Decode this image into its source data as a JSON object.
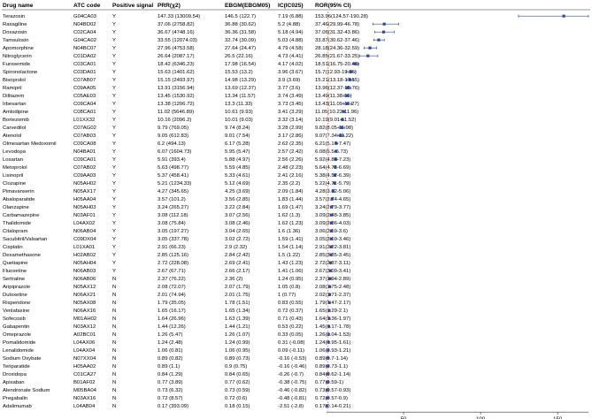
{
  "headers": {
    "drug": "Drug name",
    "atc": "ATC code",
    "signal": "Positive signal",
    "prr": "PRR(χ2)",
    "ebgm": "EBGM(EBGM05)",
    "ic": "IC(IC025)",
    "ror": "ROR(95% CI)"
  },
  "chart_data": {
    "type": "forest",
    "xlabel": "",
    "xlim": [
      0,
      170
    ],
    "xticks": [
      50,
      100,
      150
    ],
    "reference_line": 1,
    "marker_color": "#2e4a9c",
    "reference_color": "#e06060",
    "rows": [
      {
        "drug": "Terazosin",
        "atc": "G04CA03",
        "signal": "Y",
        "prr": "147.33 (13009.54)",
        "ebgm": "146.5 (122.7)",
        "ic": "7.19 (6.88)",
        "ror_text": "153.96(124.57-190.28)",
        "ror": 153.96,
        "lo": 124.57,
        "hi": 190.28
      },
      {
        "drug": "Rasagiline",
        "atc": "N04BD02",
        "signal": "Y",
        "prr": "37.06 (2758.82)",
        "ebgm": "36.88 (30.62)",
        "ic": "5.2 (4.88)",
        "ror_text": "37.46(29.99-46.78)",
        "ror": 37.46,
        "lo": 29.99,
        "hi": 46.78
      },
      {
        "drug": "Doxazosin",
        "atc": "C02CA04",
        "signal": "Y",
        "prr": "36.67 (4748.16)",
        "ebgm": "36.36 (31.58)",
        "ic": "5.18 (4.94)",
        "ror_text": "37.06(31.32-43.86)",
        "ror": 37.06,
        "lo": 31.32,
        "hi": 43.86
      },
      {
        "drug": "Tamsulosin",
        "atc": "G04CA02",
        "signal": "Y",
        "prr": "33.55 (12074.03)",
        "ebgm": "32.74 (30.09)",
        "ic": "5.03 (4.88)",
        "ror_text": "33.87(30.62-37.46)",
        "ror": 33.87,
        "lo": 30.62,
        "hi": 37.46
      },
      {
        "drug": "Apomorphine",
        "atc": "N04BC07",
        "signal": "Y",
        "prr": "27.96 (4753.58)",
        "ebgm": "27.64 (24.47)",
        "ic": "4.79 (4.58)",
        "ror_text": "28.18(24.36-32.59)",
        "ror": 28.18,
        "lo": 24.36,
        "hi": 32.59
      },
      {
        "drug": "Nitroglycerin",
        "atc": "C01DA02",
        "signal": "Y",
        "prr": "26.64 (2087.17)",
        "ebgm": "26.5 (22.16)",
        "ic": "4.73 (4.41)",
        "ror_text": "26.85(21.67-33.25)",
        "ror": 26.85,
        "lo": 21.67,
        "hi": 33.25
      },
      {
        "drug": "Furosemide",
        "atc": "C03CA01",
        "signal": "Y",
        "prr": "18.42 (6346.23)",
        "ebgm": "17.98 (16.54)",
        "ic": "4.17 (4.02)",
        "ror_text": "18.51(16.75-20.46)",
        "ror": 18.51,
        "lo": 16.75,
        "hi": 20.46
      },
      {
        "drug": "Spironolactone",
        "atc": "C03DA01",
        "signal": "Y",
        "prr": "15.63 (1401.62)",
        "ebgm": "15.53 (13.2)",
        "ic": "3.96 (3.67)",
        "ror_text": "15.7(12.93-19.06)",
        "ror": 15.7,
        "lo": 12.93,
        "hi": 19.06
      },
      {
        "drug": "Bisoprolol",
        "atc": "C07AB07",
        "signal": "Y",
        "prr": "15.15 (2493.97)",
        "ebgm": "14.98 (13.29)",
        "ic": "3.9 (3.69)",
        "ror_text": "15.21(13.18-17.55)",
        "ror": 15.21,
        "lo": 13.18,
        "hi": 17.55
      },
      {
        "drug": "Ramipril",
        "atc": "C09AA05",
        "signal": "Y",
        "prr": "13.91 (3156.94)",
        "ebgm": "13.69 (12.37)",
        "ic": "3.77 (3.6)",
        "ror_text": "13.96(12.37-15.76)",
        "ror": 13.96,
        "lo": 12.37,
        "hi": 15.76
      },
      {
        "drug": "Diltiazem",
        "atc": "C05AE03",
        "signal": "Y",
        "prr": "13.45 (1530.92)",
        "ebgm": "13.34 (11.57)",
        "ic": "3.74 (3.49)",
        "ror_text": "13.49(11.38-16)",
        "ror": 13.49,
        "lo": 11.38,
        "hi": 16.0
      },
      {
        "drug": "Irbesartan",
        "atc": "C09CA04",
        "signal": "Y",
        "prr": "13.38 (1206.72)",
        "ebgm": "13.3 (11.33)",
        "ic": "3.73 (3.45)",
        "ror_text": "13.43(11.09-16.27)",
        "ror": 13.43,
        "lo": 11.09,
        "hi": 16.27
      },
      {
        "drug": "Amlodipine",
        "atc": "C08CA01",
        "signal": "Y",
        "prr": "11.02 (5646.89)",
        "ebgm": "10.61 (9.93)",
        "ic": "3.41 (3.29)",
        "ror_text": "11.05(10.22-11.96)",
        "ror": 11.05,
        "lo": 10.22,
        "hi": 11.96
      },
      {
        "drug": "Bortezomib",
        "atc": "L01XX32",
        "signal": "Y",
        "prr": "10.16 (2096.2)",
        "ebgm": "10.01 (9.03)",
        "ic": "3.32 (3.14)",
        "ror_text": "10.19(9.01-11.52)",
        "ror": 10.19,
        "lo": 9.01,
        "hi": 11.52
      },
      {
        "drug": "Carvedilol",
        "atc": "C07AG02",
        "signal": "Y",
        "prr": "9.79 (769.05)",
        "ebgm": "9.74 (8.24)",
        "ic": "3.28 (2.99)",
        "ror_text": "9.82(8.05-11.98)",
        "ror": 9.82,
        "lo": 8.05,
        "hi": 11.98
      },
      {
        "drug": "Atenolol",
        "atc": "C07AB03",
        "signal": "Y",
        "prr": "9.05 (612.83)",
        "ebgm": "9.01 (7.54)",
        "ic": "3.17 (2.86)",
        "ror_text": "9.07(7.34-11.22)",
        "ror": 9.07,
        "lo": 7.34,
        "hi": 11.22
      },
      {
        "drug": "Olmesartan Medoxomil",
        "atc": "C09CA08",
        "signal": "Y",
        "prr": "6.2 (494.13)",
        "ebgm": "6.17 (5.28)",
        "ic": "2.62 (2.35)",
        "ror_text": "6.21(5.17-7.47)",
        "ror": 6.21,
        "lo": 5.17,
        "hi": 7.47
      },
      {
        "drug": "Levodopa",
        "atc": "N04BA01",
        "signal": "Y",
        "prr": "6.07 (1604.73)",
        "ebgm": "5.95 (5.47)",
        "ic": "2.57 (2.42)",
        "ror_text": "6.08(5.5-6.73)",
        "ror": 6.08,
        "lo": 5.5,
        "hi": 6.73
      },
      {
        "drug": "Losartan",
        "atc": "C09CA01",
        "signal": "Y",
        "prr": "5.91 (393.4)",
        "ebgm": "5.88 (4.97)",
        "ic": "2.56 (2.26)",
        "ror_text": "5.92(4.85-7.23)",
        "ror": 5.92,
        "lo": 4.85,
        "hi": 7.23
      },
      {
        "drug": "Metoprolol",
        "atc": "C07AB02",
        "signal": "Y",
        "prr": "5.63 (498.77)",
        "ebgm": "5.59 (4.85)",
        "ic": "2.48 (2.23)",
        "ror_text": "5.64(4.75-6.69)",
        "ror": 5.64,
        "lo": 4.75,
        "hi": 6.69
      },
      {
        "drug": "Lisinopril",
        "atc": "C09AA03",
        "signal": "Y",
        "prr": "5.37 (458.41)",
        "ebgm": "5.33 (4.61)",
        "ic": "2.41 (2.16)",
        "ror_text": "5.38(4.52-6.39)",
        "ror": 5.38,
        "lo": 4.52,
        "hi": 6.39
      },
      {
        "drug": "Clozapine",
        "atc": "N05AH02",
        "signal": "Y",
        "prr": "5.21 (1234.33)",
        "ebgm": "5.12 (4.69)",
        "ic": "2.35 (2.2)",
        "ror_text": "5.22(4.71-5.79)",
        "ror": 5.22,
        "lo": 4.71,
        "hi": 5.79
      },
      {
        "drug": "Pimavanserin",
        "atc": "N05AX17",
        "signal": "Y",
        "prr": "4.27 (345.65)",
        "ebgm": "4.25 (3.69)",
        "ic": "2.09 (1.84)",
        "ror_text": "4.28(3.62-5.06)",
        "ror": 4.28,
        "lo": 3.62,
        "hi": 5.06
      },
      {
        "drug": "Abaloparatide",
        "atc": "H05AA04",
        "signal": "Y",
        "prr": "3.57 (101.2)",
        "ebgm": "3.56 (2.85)",
        "ic": "1.83 (1.44)",
        "ror_text": "3.57(2.74-4.65)",
        "ror": 3.57,
        "lo": 2.74,
        "hi": 4.65
      },
      {
        "drug": "Olanzapine",
        "atc": "N05AH03",
        "signal": "Y",
        "prr": "3.24 (265.27)",
        "ebgm": "3.22 (2.84)",
        "ic": "1.69 (1.47)",
        "ror_text": "3.24(2.79-3.77)",
        "ror": 3.24,
        "lo": 2.79,
        "hi": 3.77
      },
      {
        "drug": "Carbamazepine",
        "atc": "N03AF01",
        "signal": "Y",
        "prr": "3.08 (112.18)",
        "ebgm": "3.07 (2.56)",
        "ic": "1.62 (1.3)",
        "ror_text": "3.09(2.48-3.85)",
        "ror": 3.09,
        "lo": 2.48,
        "hi": 3.85
      },
      {
        "drug": "Thalidomide",
        "atc": "L04AX02",
        "signal": "Y",
        "prr": "3.08 (75.84)",
        "ebgm": "3.08 (2.46)",
        "ic": "1.62 (1.23)",
        "ror_text": "3.09(2.36-4.03)",
        "ror": 3.09,
        "lo": 2.36,
        "hi": 4.03
      },
      {
        "drug": "Citalopram",
        "atc": "N06AB04",
        "signal": "Y",
        "prr": "3.05 (197.27)",
        "ebgm": "3.04 (2.65)",
        "ic": "1.6 (1.36)",
        "ror_text": "3.06(2.59-3.6)",
        "ror": 3.06,
        "lo": 2.59,
        "hi": 3.6
      },
      {
        "drug": "Sacubitril/Valsartan",
        "atc": "C09DX04",
        "signal": "Y",
        "prr": "3.05 (337.78)",
        "ebgm": "3.02 (2.72)",
        "ic": "1.59 (1.41)",
        "ror_text": "3.05(2.69-3.46)",
        "ror": 3.05,
        "lo": 2.69,
        "hi": 3.46
      },
      {
        "drug": "Cisplatin",
        "atc": "L01XA01",
        "signal": "Y",
        "prr": "2.91 (66.23)",
        "ebgm": "2.9 (2.32)",
        "ic": "1.54 (1.14)",
        "ror_text": "2.91(2.22-3.81)",
        "ror": 2.91,
        "lo": 2.22,
        "hi": 3.81
      },
      {
        "drug": "Dexamethasone",
        "atc": "H02AB02",
        "signal": "Y",
        "prr": "2.85 (125.16)",
        "ebgm": "2.84 (2.42)",
        "ic": "1.5 (1.22)",
        "ror_text": "2.85(2.35-3.45)",
        "ror": 2.85,
        "lo": 2.35,
        "hi": 3.45
      },
      {
        "drug": "Quetiapine",
        "atc": "N05AH04",
        "signal": "Y",
        "prr": "2.72 (228.08)",
        "ebgm": "2.69 (2.41)",
        "ic": "1.43 (1.23)",
        "ror_text": "2.72(2.37-3.11)",
        "ror": 2.72,
        "lo": 2.37,
        "hi": 3.11
      },
      {
        "drug": "Fluoxetine",
        "atc": "N06AB03",
        "signal": "Y",
        "prr": "2.67 (67.71)",
        "ebgm": "2.66 (2.17)",
        "ic": "1.41 (1.06)",
        "ror_text": "2.67(2.09-3.41)",
        "ror": 2.67,
        "lo": 2.09,
        "hi": 3.41
      },
      {
        "drug": "Sertraline",
        "atc": "N06AB06",
        "signal": "N",
        "prr": "2.37 (76.22)",
        "ebgm": "2.36 (2)",
        "ic": "1.24 (0.95)",
        "ror_text": "2.37(1.94-2.89)",
        "ror": 2.37,
        "lo": 1.94,
        "hi": 2.89
      },
      {
        "drug": "Aripiprazole",
        "atc": "N05AX12",
        "signal": "N",
        "prr": "2.08 (72.07)",
        "ebgm": "2.07 (1.79)",
        "ic": "1.05 (0.8)",
        "ror_text": "2.08(1.75-2.48)",
        "ror": 2.08,
        "lo": 1.75,
        "hi": 2.48
      },
      {
        "drug": "Duloxetine",
        "atc": "N06AX21",
        "signal": "N",
        "prr": "2.01 (74.94)",
        "ebgm": "2.01 (1.75)",
        "ic": "1 (0.77)",
        "ror_text": "2.02(1.71-2.37)",
        "ror": 2.02,
        "lo": 1.71,
        "hi": 2.37
      },
      {
        "drug": "Risperidone",
        "atc": "N05AX08",
        "signal": "N",
        "prr": "1.79 (35.05)",
        "ebgm": "1.78 (1.51)",
        "ic": "0.83 (0.55)",
        "ror_text": "1.79(1.47-2.17)",
        "ror": 1.79,
        "lo": 1.47,
        "hi": 2.17
      },
      {
        "drug": "Venlafaxine",
        "atc": "N06AX16",
        "signal": "N",
        "prr": "1.65 (16.17)",
        "ebgm": "1.65 (1.34)",
        "ic": "0.72 (0.37)",
        "ror_text": "1.65(1.29-2.1)",
        "ror": 1.65,
        "lo": 1.29,
        "hi": 2.1
      },
      {
        "drug": "Sofecosib",
        "atc": "M01AH02",
        "signal": "N",
        "prr": "1.64 (26.96)",
        "ebgm": "1.63 (1.39)",
        "ic": "0.71 (0.43)",
        "ror_text": "1.64(1.36-1.97)",
        "ror": 1.64,
        "lo": 1.36,
        "hi": 1.97
      },
      {
        "drug": "Gabapentin",
        "atc": "N03AX12",
        "signal": "N",
        "prr": "1.44 (12.26)",
        "ebgm": "1.44 (1.21)",
        "ic": "0.53 (0.22)",
        "ror_text": "1.45(1.17-1.78)",
        "ror": 1.45,
        "lo": 1.17,
        "hi": 1.78
      },
      {
        "drug": "Omeprazole",
        "atc": "A02BC01",
        "signal": "N",
        "prr": "1.26 (5.47)",
        "ebgm": "1.26 (1.07)",
        "ic": "0.33 (0.05)",
        "ror_text": "1.26(1.04-1.53)",
        "ror": 1.26,
        "lo": 1.04,
        "hi": 1.53
      },
      {
        "drug": "Pomalidomide",
        "atc": "L04AX06",
        "signal": "N",
        "prr": "1.24 (2.48)",
        "ebgm": "1.24 (0.99)",
        "ic": "0.31 (-0.08)",
        "ror_text": "1.24(0.95-1.61)",
        "ror": 1.24,
        "lo": 0.95,
        "hi": 1.61
      },
      {
        "drug": "Lenalidomide",
        "atc": "L04AX04",
        "signal": "N",
        "prr": "1.06 (0.81)",
        "ebgm": "1.06 (0.95)",
        "ic": "0.09 (-0.11)",
        "ror_text": "1.06(0.93-1.21)",
        "ror": 1.06,
        "lo": 0.93,
        "hi": 1.21
      },
      {
        "drug": "Sodium Oxybate",
        "atc": "N07XX04",
        "signal": "N",
        "prr": "0.89 (0.82)",
        "ebgm": "0.89 (0.73)",
        "ic": "-0.16 (-0.53)",
        "ror_text": "0.89(0.7-1.14)",
        "ror": 0.89,
        "lo": 0.7,
        "hi": 1.14
      },
      {
        "drug": "Teriparatide",
        "atc": "H05AA02",
        "signal": "N",
        "prr": "0.89 (1.1)",
        "ebgm": "0.9 (0.75)",
        "ic": "-0.16 (-0.46)",
        "ror_text": "0.89(0.73-1.1)",
        "ror": 0.89,
        "lo": 0.73,
        "hi": 1.1
      },
      {
        "drug": "Droxidopa",
        "atc": "C01CA27",
        "signal": "N",
        "prr": "0.84 (1.29)",
        "ebgm": "0.84 (0.65)",
        "ic": "-0.26 (-0.7)",
        "ror_text": "0.84(0.62-1.14)",
        "ror": 0.84,
        "lo": 0.62,
        "hi": 1.14
      },
      {
        "drug": "Apixaban",
        "atc": "B01AF02",
        "signal": "N",
        "prr": "0.77 (3.89)",
        "ebgm": "0.77 (0.62)",
        "ic": "-0.38 (-0.75)",
        "ror_text": "0.77(0.59-1)",
        "ror": 0.77,
        "lo": 0.59,
        "hi": 1.0
      },
      {
        "drug": "Alendronate Sodium",
        "atc": "M05BA04",
        "signal": "N",
        "prr": "0.73 (6.32)",
        "ebgm": "0.73 (0.59)",
        "ic": "-0.46 (-0.82)",
        "ror_text": "0.73(0.57-0.93)",
        "ror": 0.73,
        "lo": 0.57,
        "hi": 0.93
      },
      {
        "drug": "Pregabalin",
        "atc": "N03AX16",
        "signal": "N",
        "prr": "0.72 (8.57)",
        "ebgm": "0.72 (0.6)",
        "ic": "-0.48 (-0.81)",
        "ror_text": "0.72(0.57-0.9)",
        "ror": 0.72,
        "lo": 0.57,
        "hi": 0.9
      },
      {
        "drug": "Adalimumab",
        "atc": "L04AB04",
        "signal": "N",
        "prr": "0.17 (393.09)",
        "ebgm": "0.18 (0.15)",
        "ic": "-2.51 (-2.8)",
        "ror_text": "0.17(0.14-0.21)",
        "ror": 0.17,
        "lo": 0.14,
        "hi": 0.21
      }
    ]
  }
}
